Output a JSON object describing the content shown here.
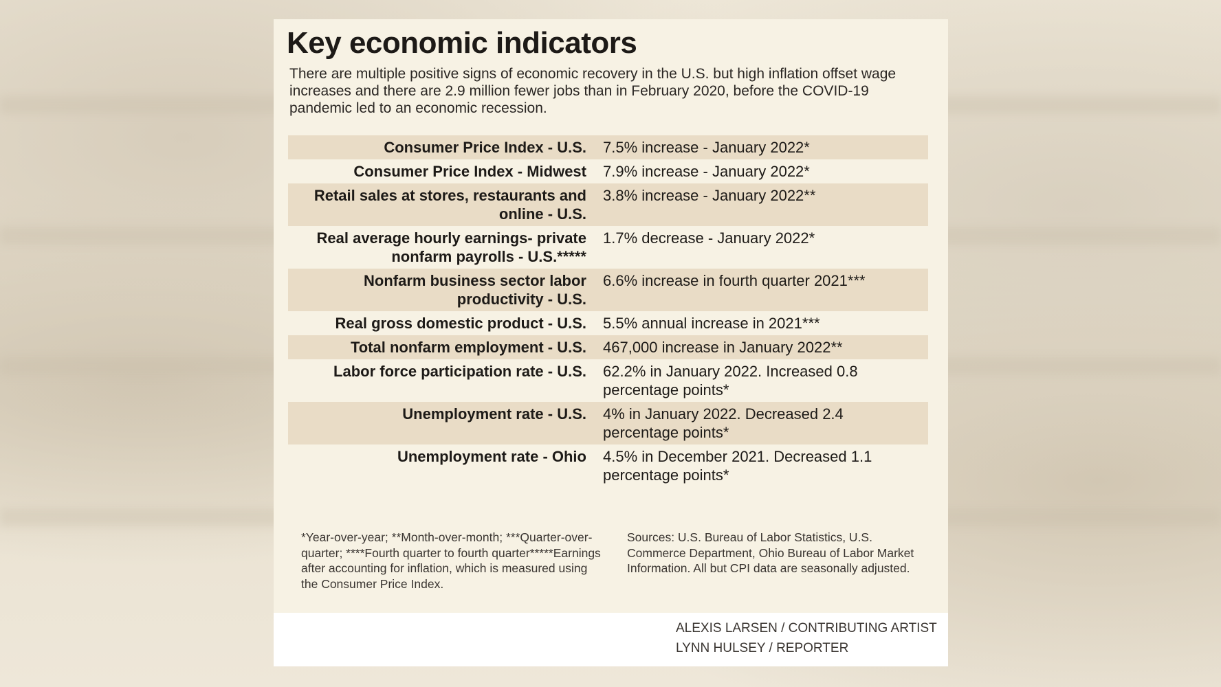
{
  "title": "Key economic indicators",
  "intro": "There are multiple positive signs of economic recovery in the U.S. but high inflation offset wage increases and there are 2.9 million fewer jobs than in February 2020, before the COVID-19 pandemic led to an economic recession.",
  "rows": [
    {
      "label": "Consumer Price Index - U.S.",
      "value": "7.5% increase - January 2022*"
    },
    {
      "label": "Consumer Price Index - Midwest",
      "value": "7.9% increase - January 2022*"
    },
    {
      "label": "Retail sales at stores, restaurants and online - U.S.",
      "value": "3.8% increase - January 2022**"
    },
    {
      "label": "Real average hourly earnings- private nonfarm payrolls - U.S.*****",
      "value": "1.7% decrease - January 2022*"
    },
    {
      "label": "Nonfarm business sector labor productivity - U.S.",
      "value": "6.6% increase in fourth quarter 2021***"
    },
    {
      "label": "Real gross domestic product - U.S.",
      "value": "5.5% annual increase in 2021***"
    },
    {
      "label": "Total nonfarm employment - U.S.",
      "value": "467,000 increase in January 2022**"
    },
    {
      "label": "Labor force participation rate - U.S.",
      "value": "62.2% in January 2022. Increased 0.8 percentage points*"
    },
    {
      "label": "Unemployment rate - U.S.",
      "value": "4% in January 2022. Decreased 2.4 percentage points*"
    },
    {
      "label": "Unemployment rate - Ohio",
      "value": "4.5% in December 2021. Decreased 1.1 percentage points*"
    }
  ],
  "footnotes": "*Year-over-year; **Month-over-month; ***Quarter-over-quarter; ****Fourth quarter to fourth quarter*****Earnings after accounting for inflation, which is measured using the Consumer Price Index.",
  "sources": "Sources: U.S. Bureau of Labor Statistics, U.S. Commerce Department, Ohio Bureau of Labor Market Information. All but CPI data are seasonally adjusted.",
  "credits": {
    "artist": "ALEXIS LARSEN / CONTRIBUTING ARTIST",
    "reporter": "LYNN HULSEY / REPORTER"
  },
  "colors": {
    "card": "#f7f2e4",
    "row_shade": "#e9dcc6",
    "text": "#1d1a17"
  }
}
